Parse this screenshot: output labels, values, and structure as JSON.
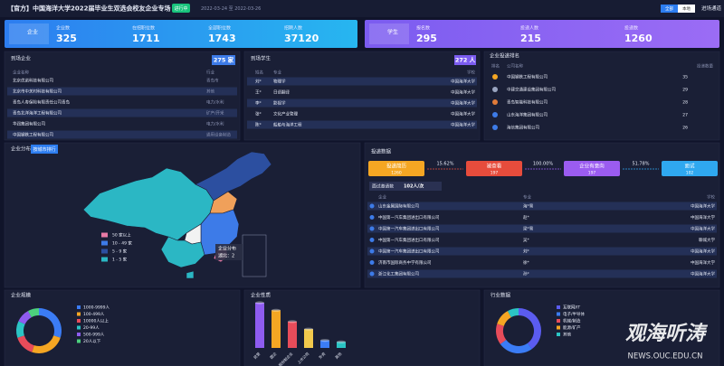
{
  "header": {
    "title": "【官方】中国海洋大学2022届毕业生双选会校友企业专场",
    "badge": "进行中",
    "dates": "2022-03-24 至 2022-03-26",
    "buttons": [
      "全部",
      "本地"
    ],
    "link": "进场通道"
  },
  "stats": {
    "company": {
      "label": "企业",
      "items": [
        {
          "label": "企业数",
          "value": 325
        },
        {
          "label": "在招职位数",
          "value": 1711
        },
        {
          "label": "全部职位数",
          "value": 1743
        },
        {
          "label": "招聘人数",
          "value": 37120
        }
      ]
    },
    "student": {
      "label": "学生",
      "items": [
        {
          "label": "报名数",
          "value": 295
        },
        {
          "label": "投递人数",
          "value": 215
        },
        {
          "label": "投递数",
          "value": 1260
        }
      ]
    }
  },
  "companies": {
    "title": "到场企业",
    "count": "275 家",
    "columns": [
      "企业名称",
      "行业"
    ],
    "rows": [
      [
        "北京优诺科技有限公司",
        "青岛市"
      ],
      [
        "北京市中关村科技有限公司",
        "其他"
      ],
      [
        "青岛人寿保险有限责任公司青岛",
        "电力/水利"
      ],
      [
        "青岛北洋海洋工程有限公司",
        "矿产/开采"
      ],
      [
        "华润集团有限公司",
        "电力/水利"
      ],
      [
        "中国钢铁工程有限公司",
        "通用设备制造"
      ]
    ]
  },
  "students": {
    "title": "到场学生",
    "count": "272 人",
    "columns": [
      "姓名",
      "专业",
      "学校"
    ],
    "rows": [
      [
        "刘*",
        "物理学",
        "中国海洋大学"
      ],
      [
        "王*",
        "日语翻译",
        "中国海洋大学"
      ],
      [
        "李*",
        "影视学",
        "中国海洋大学"
      ],
      [
        "张*",
        "文化产业管理",
        "中国海洋大学"
      ],
      [
        "陈*",
        "船舶与海洋工程",
        "中国海洋大学"
      ]
    ]
  },
  "ranking": {
    "title": "企业投递排名",
    "columns": [
      "排名",
      "公司名称",
      "投递数量"
    ],
    "rows": [
      {
        "name": "中国钢铁工程有限公司",
        "value": 35
      },
      {
        "name": "中建交通建设集团有限公司",
        "value": 29
      },
      {
        "name": "青岛智能科技有限公司",
        "value": 28
      },
      {
        "name": "山东海洋集团有限公司",
        "value": 27
      },
      {
        "name": "海信集团有限公司",
        "value": 26
      }
    ]
  },
  "map": {
    "title": "企业分布",
    "button": "按城市排行",
    "legend": [
      "50 家以上",
      "10 - 49 家",
      "5 - 9 家",
      "1 - 5 家"
    ],
    "tooltip": {
      "title": "企业分布",
      "text": "湖北：2"
    }
  },
  "funnel": {
    "title": "投递数据",
    "steps": [
      {
        "label": "投递简历",
        "value": 1260
      },
      {
        "label": "被查看",
        "value": 197
      },
      {
        "label": "企业有意向",
        "value": 197
      },
      {
        "label": "面试",
        "value": 102
      }
    ],
    "rates": [
      "15.62%",
      "100.00%",
      "51.78%"
    ],
    "interview": {
      "label": "面试邀请数",
      "value": "102人/次"
    },
    "columns": [
      "企业",
      "专业",
      "学校"
    ],
    "rows": [
      [
        "山东金属国际有限公司",
        "海*雪",
        "中国海洋大学"
      ],
      [
        "中国第一汽车集团进出口有限公司",
        "赵*",
        "中国海洋大学"
      ],
      [
        "中国第一汽车集团进出口有限公司",
        "梁*雪",
        "中国海洋大学"
      ],
      [
        "中国第一汽车集团进出口有限公司",
        "吴*",
        "聊城大学"
      ],
      [
        "中国第一汽车集团进出口有限公司",
        "刘*",
        "中国海洋大学"
      ],
      [
        "济南市国际商务中学有限公司",
        "徐*",
        "中国海洋大学"
      ],
      [
        "浙江化工集团有限公司",
        "孙*",
        "中国海洋大学"
      ]
    ]
  },
  "chart_data": [
    {
      "type": "donut",
      "title": "企业规模",
      "categories": [
        "1000-9999人",
        "100-499人",
        "10000人以上",
        "20-99人",
        "500-999人",
        "20人以下"
      ],
      "values": [
        30,
        25,
        15,
        12,
        10,
        8
      ],
      "colors": [
        "#3b7cf5",
        "#f5a623",
        "#e74c5a",
        "#2bc4c4",
        "#8e5cf0",
        "#4cd07d"
      ]
    },
    {
      "type": "bar",
      "title": "企业性质",
      "categories": [
        "民营",
        "国企",
        "股份制企业",
        "上市公司",
        "外资",
        "其他"
      ],
      "values": [
        60,
        50,
        35,
        25,
        10,
        8
      ],
      "colors": [
        "#8e5cf0",
        "#f5a623",
        "#e74c5a",
        "#f2c94c",
        "#3b7cf5",
        "#2bc4c4"
      ]
    },
    {
      "type": "donut",
      "title": "行业数据",
      "categories": [
        "互联网/IT",
        "电子/半导体",
        "机械/制造",
        "能源/矿产",
        "其他"
      ],
      "values": [
        40,
        25,
        15,
        12,
        8
      ],
      "colors": [
        "#5b5cf0",
        "#3b7cf5",
        "#e74c5a",
        "#f5a623",
        "#2bc4c4"
      ]
    }
  ],
  "watermark": {
    "title": "观海听涛",
    "url": "NEWS.OUC.EDU.CN"
  }
}
